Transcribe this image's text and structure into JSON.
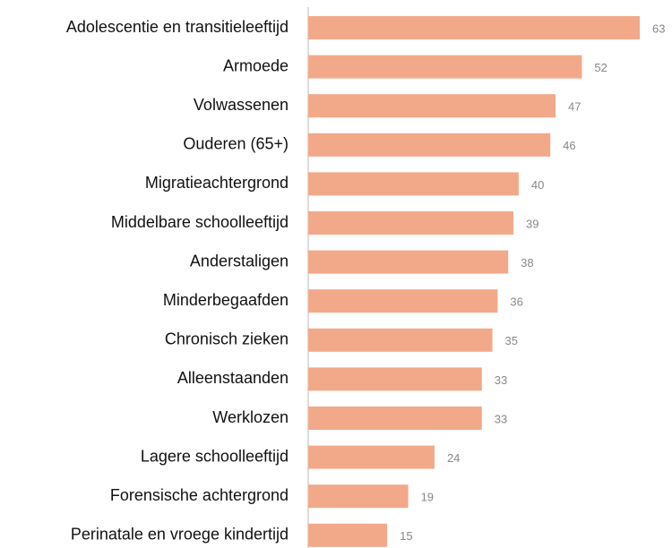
{
  "chart_data": {
    "type": "bar",
    "orientation": "horizontal",
    "categories": [
      "Adolescentie en transitieleeftijd",
      "Armoede",
      "Volwassenen",
      "Ouderen (65+)",
      "Migratieachtergrond",
      "Middelbare schoolleeftijd",
      "Anderstaligen",
      "Minderbegaafden",
      "Chronisch zieken",
      "Alleenstaanden",
      "Werklozen",
      "Lagere schoolleeftijd",
      "Forensische achtergrond",
      "Perinatale en vroege kindertijd"
    ],
    "values": [
      63,
      52,
      47,
      46,
      40,
      39,
      38,
      36,
      35,
      33,
      33,
      24,
      19,
      15
    ],
    "color": "#f2a98a"
  }
}
